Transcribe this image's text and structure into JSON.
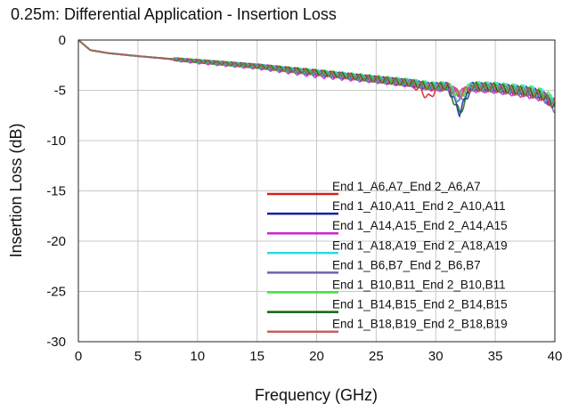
{
  "chart_data": {
    "type": "line",
    "title": "0.25m: Differential Application - Insertion Loss",
    "xlabel": "Frequency (GHz)",
    "ylabel": "Insertion Loss (dB)",
    "xlim": [
      0,
      40
    ],
    "ylim": [
      -30,
      0
    ],
    "xticks": [
      "0",
      "5",
      "10",
      "15",
      "20",
      "25",
      "30",
      "35",
      "40"
    ],
    "yticks": [
      "0",
      "-5",
      "-10",
      "-15",
      "-20",
      "-25",
      "-30"
    ],
    "grid": true,
    "legend_position": "bottom-right",
    "x": [
      0,
      1,
      2.5,
      5,
      10,
      15,
      20,
      25,
      28,
      29.5,
      30,
      31,
      32,
      33,
      35,
      38,
      39,
      40
    ],
    "series": [
      {
        "name": "End 1_A6,A7_End 2_A6,A7",
        "color": "#d42020",
        "values": [
          0,
          -1.0,
          -1.3,
          -1.6,
          -2.1,
          -2.6,
          -3.2,
          -3.9,
          -4.3,
          -5.8,
          -4.8,
          -4.6,
          -5.4,
          -4.7,
          -4.8,
          -5.3,
          -5.6,
          -6.3
        ]
      },
      {
        "name": "End 1_A10,A11_End 2_A10,A11",
        "color": "#1020a0",
        "values": [
          0,
          -1.0,
          -1.3,
          -1.6,
          -2.1,
          -2.6,
          -3.3,
          -3.9,
          -4.3,
          -4.6,
          -4.6,
          -4.6,
          -7.2,
          -4.6,
          -4.7,
          -5.1,
          -5.5,
          -6.6
        ]
      },
      {
        "name": "End 1_A14,A15_End 2_A14,A15",
        "color": "#d020d0",
        "values": [
          0,
          -1.0,
          -1.3,
          -1.6,
          -2.2,
          -2.7,
          -3.5,
          -4.0,
          -4.4,
          -4.7,
          -4.8,
          -4.7,
          -5.3,
          -4.8,
          -4.9,
          -5.4,
          -5.7,
          -6.4
        ]
      },
      {
        "name": "End 1_A18,A19_End 2_A18,A19",
        "color": "#30d8e0",
        "values": [
          0,
          -1.0,
          -1.3,
          -1.6,
          -2.1,
          -2.6,
          -3.2,
          -3.9,
          -4.2,
          -4.5,
          -4.6,
          -4.5,
          -6.0,
          -4.5,
          -4.6,
          -5.0,
          -5.3,
          -6.2
        ]
      },
      {
        "name": "End 1_B6,B7_End 2_B6,B7",
        "color": "#7060b0",
        "values": [
          0,
          -1.0,
          -1.3,
          -1.6,
          -2.1,
          -2.6,
          -3.3,
          -3.9,
          -4.3,
          -4.6,
          -4.7,
          -4.6,
          -6.3,
          -4.7,
          -4.8,
          -5.2,
          -5.6,
          -6.8
        ]
      },
      {
        "name": "End 1_B10,B11_End 2_B10,B11",
        "color": "#40e040",
        "values": [
          0,
          -1.0,
          -1.3,
          -1.6,
          -2.1,
          -2.6,
          -3.2,
          -3.8,
          -4.2,
          -4.5,
          -4.5,
          -4.5,
          -5.5,
          -4.5,
          -4.6,
          -5.0,
          -5.3,
          -6.0
        ]
      },
      {
        "name": "End 1_B14,B15_End 2_B14,B15",
        "color": "#106010",
        "values": [
          0,
          -1.0,
          -1.3,
          -1.6,
          -2.1,
          -2.6,
          -3.2,
          -3.9,
          -4.3,
          -4.6,
          -4.6,
          -4.6,
          -7.3,
          -4.6,
          -4.7,
          -5.2,
          -5.5,
          -6.5
        ]
      },
      {
        "name": "End 1_B18,B19_End 2_B18,B19",
        "color": "#c86060",
        "values": [
          0,
          -1.0,
          -1.3,
          -1.6,
          -2.1,
          -2.6,
          -3.3,
          -3.9,
          -4.3,
          -4.7,
          -4.7,
          -4.6,
          -5.4,
          -4.7,
          -4.8,
          -5.3,
          -5.6,
          -6.4
        ]
      }
    ]
  }
}
